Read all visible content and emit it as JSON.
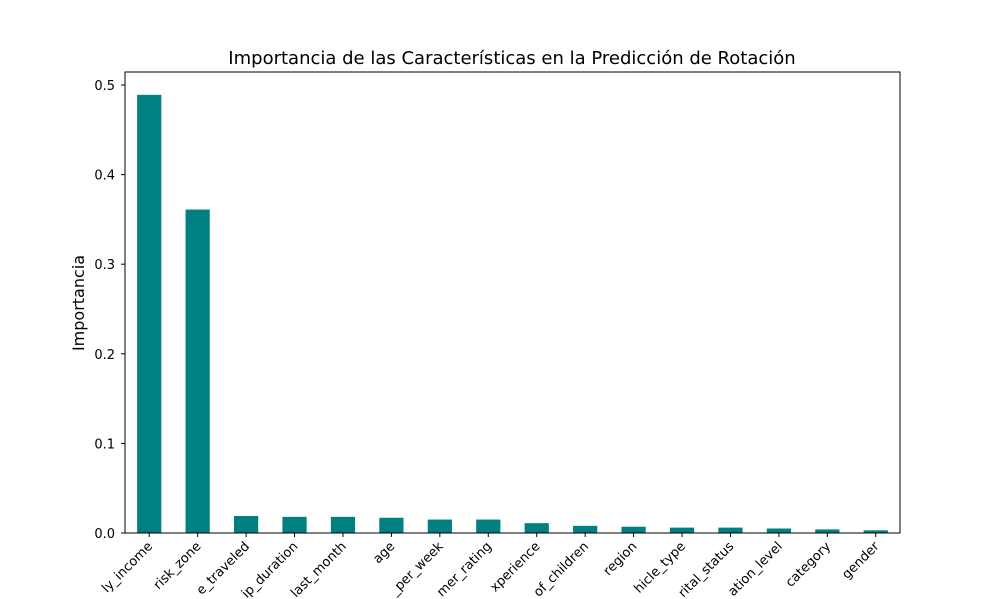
{
  "chart_data": {
    "type": "bar",
    "title": "Importancia de las Características en la Predicción de Rotación",
    "y_label": "Importancia",
    "categories": [
      "ly_income",
      "risk_zone",
      "e_traveled",
      "ip_duration",
      "last_month",
      "age",
      "_per_week",
      "mer_rating",
      "xperience",
      "of_children",
      "region",
      "hicle_type",
      "rital_status",
      "ation_level",
      "category",
      "gender"
    ],
    "values": [
      0.489,
      0.361,
      0.019,
      0.018,
      0.018,
      0.017,
      0.015,
      0.015,
      0.011,
      0.008,
      0.007,
      0.006,
      0.006,
      0.005,
      0.004,
      0.003
    ],
    "color": "#008080",
    "ylim": [
      0,
      0.5145
    ],
    "yticks": [
      {
        "value": 0,
        "label": "0.0"
      },
      0.1,
      0.2,
      0.3,
      0.4,
      0.5
    ],
    "grid": false
  }
}
